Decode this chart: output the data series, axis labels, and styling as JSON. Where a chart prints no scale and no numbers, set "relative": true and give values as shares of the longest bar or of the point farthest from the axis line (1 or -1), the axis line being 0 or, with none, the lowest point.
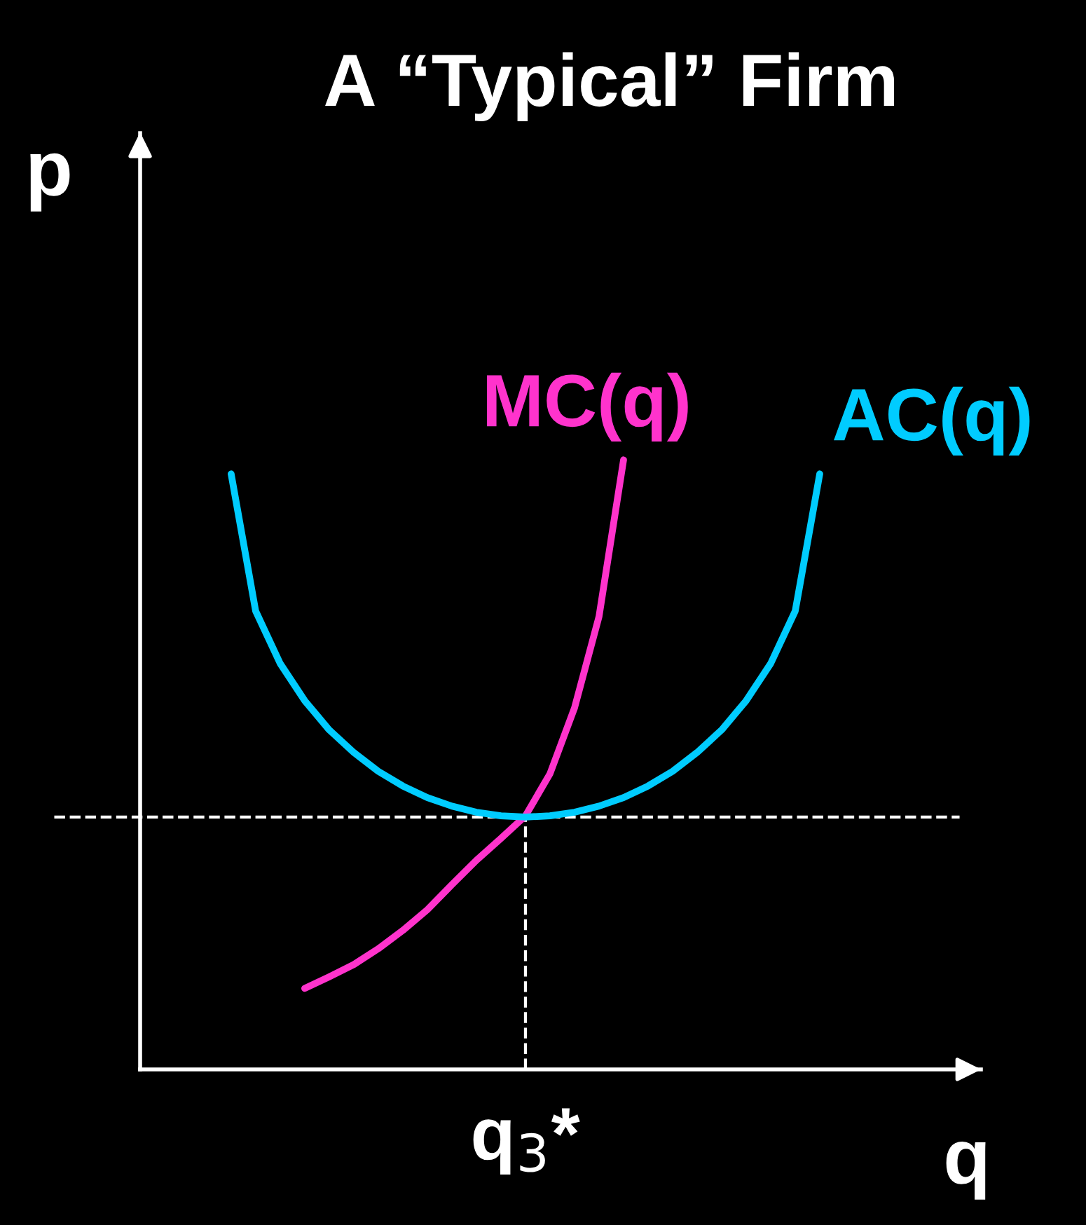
{
  "chart_data": {
    "type": "line",
    "title": "A “Typical” Firm",
    "xlabel": "q",
    "ylabel": "p",
    "relative": true,
    "legend": false,
    "marker": "none",
    "line_style": "solid",
    "annotations": [
      "q$_{3}$*"
    ],
    "categories": [
      null,
      null,
      null,
      null,
      null,
      null,
      null,
      null,
      null,
      null,
      null,
      null,
      null,
      null,
      null,
      null,
      null,
      null,
      null,
      null,
      null,
      null,
      null,
      null,
      null
    ],
    "series": [
      {
        "name": "MC(q)",
        "color": "#ff33cc",
        "values": [
          null,
          null,
          null,
          0.133,
          0.152,
          0.172,
          0.198,
          0.228,
          0.262,
          0.303,
          0.343,
          0.379,
          0.416,
          0.485,
          0.593,
          0.743,
          1.0,
          null,
          null,
          null,
          null,
          null,
          null,
          null,
          null
        ]
      },
      {
        "name": "AC(q)",
        "color": "#00ccff",
        "values": [
          0.977,
          0.752,
          0.666,
          0.605,
          0.557,
          0.52,
          0.489,
          0.465,
          0.446,
          0.432,
          0.422,
          0.416,
          0.414,
          0.416,
          0.422,
          0.432,
          0.446,
          0.465,
          0.489,
          0.52,
          0.557,
          0.605,
          0.666,
          0.752,
          0.977
        ]
      }
    ],
    "ref_lines": [
      {
        "axis": "y",
        "value": 0.414,
        "color": "#ffffff",
        "line_style": "dashed"
      }
    ]
  }
}
